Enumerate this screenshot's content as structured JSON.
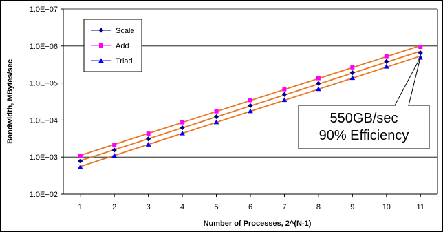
{
  "chart_data": {
    "type": "line",
    "title": "",
    "xlabel": "Number of Processes, 2^(N-1)",
    "ylabel": "Bandwidth, MBytes/sec",
    "x": [
      1,
      2,
      3,
      4,
      5,
      6,
      7,
      8,
      9,
      10,
      11
    ],
    "xlim": [
      0.5,
      11.5
    ],
    "ylim": [
      100,
      10000000
    ],
    "yscale": "log",
    "xtick_labels": [
      "1",
      "2",
      "3",
      "4",
      "5",
      "6",
      "7",
      "8",
      "9",
      "10",
      "11"
    ],
    "ytick_labels": [
      "1.0E+02",
      "1.0E+03",
      "1.0E+04",
      "1.0E+05",
      "1.0E+06",
      "1.0E+07"
    ],
    "ytick_values": [
      100,
      1000,
      10000,
      100000,
      1000000,
      10000000
    ],
    "grid": "horizontal",
    "legend_position": "top-left",
    "trend_color": "#E87722",
    "series": [
      {
        "name": "Scale",
        "color": "#000080",
        "marker": "diamond",
        "values": [
          780,
          1550,
          3100,
          6200,
          12300,
          24500,
          49000,
          97000,
          190000,
          380000,
          650000
        ]
      },
      {
        "name": "Add",
        "color": "#FF00FF",
        "marker": "square",
        "values": [
          1100,
          2150,
          4300,
          8700,
          17200,
          34500,
          68000,
          135000,
          265000,
          530000,
          950000
        ]
      },
      {
        "name": "Triad",
        "color": "#0000FF",
        "marker": "triangle",
        "values": [
          540,
          1100,
          2200,
          4400,
          8800,
          17500,
          35000,
          69000,
          138000,
          280000,
          490000
        ]
      }
    ],
    "annotation": {
      "lines": [
        "550GB/sec",
        "90% Efficiency"
      ],
      "point_x": 11,
      "point_y": 500000
    }
  }
}
